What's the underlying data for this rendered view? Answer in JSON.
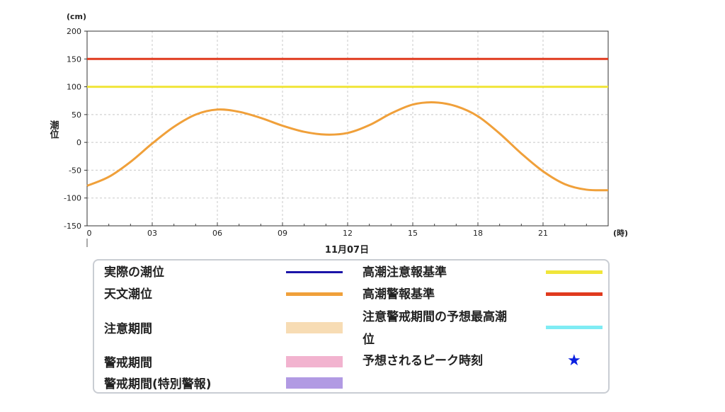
{
  "chart_data": {
    "type": "line",
    "ylabel": "潮位",
    "yunit": "(cm)",
    "xunit": "(時)",
    "date_label": "11月07日",
    "ylim": [
      -150,
      200
    ],
    "yticks": [
      200,
      150,
      100,
      50,
      0,
      -50,
      -100,
      -150
    ],
    "xlim": [
      0,
      24
    ],
    "xticks": [
      0,
      3,
      6,
      9,
      12,
      15,
      18,
      21
    ],
    "xtick_labels": [
      "0",
      "03",
      "06",
      "09",
      "12",
      "15",
      "18",
      "21"
    ],
    "grid": true,
    "reference_lines": [
      {
        "name": "高潮警報基準",
        "value": 150,
        "color": "#e03a1e"
      },
      {
        "name": "高潮注意報基準",
        "value": 100,
        "color": "#f0e53a"
      }
    ],
    "series": [
      {
        "name": "天文潮位",
        "color": "#f0a03a",
        "x": [
          0,
          1,
          2,
          3,
          4,
          5,
          6,
          7,
          8,
          9,
          10,
          11,
          12,
          13,
          14,
          15,
          16,
          17,
          18,
          19,
          20,
          21,
          22,
          23,
          24
        ],
        "y": [
          -78,
          -62,
          -35,
          -2,
          28,
          50,
          59,
          55,
          44,
          30,
          19,
          14,
          17,
          31,
          52,
          68,
          72,
          65,
          47,
          16,
          -20,
          -52,
          -75,
          -85,
          -86
        ]
      }
    ]
  },
  "legend": {
    "items": [
      {
        "label": "実際の潮位",
        "color": "#1b14a8",
        "kind": "line"
      },
      {
        "label": "天文潮位",
        "color": "#f0a03a",
        "kind": "line"
      },
      {
        "label": "注意期間",
        "color": "#f7dcb4",
        "kind": "band"
      },
      {
        "label": "警戒期間",
        "color": "#f2b3cf",
        "kind": "band"
      },
      {
        "label": "警戒期間(特別警報)",
        "color": "#b19ae3",
        "kind": "band"
      },
      {
        "label": "高潮注意報基準",
        "color": "#f0e53a",
        "kind": "line"
      },
      {
        "label": "高潮警報基準",
        "color": "#e03a1e",
        "kind": "line"
      },
      {
        "label_line1": "注意警戒期間の予想最高潮",
        "label_line2": "位",
        "color": "#7fecf4",
        "kind": "line"
      },
      {
        "label": "予想されるピーク時刻",
        "color": "#0a1fe0",
        "kind": "star",
        "icon": "star-icon"
      }
    ]
  }
}
